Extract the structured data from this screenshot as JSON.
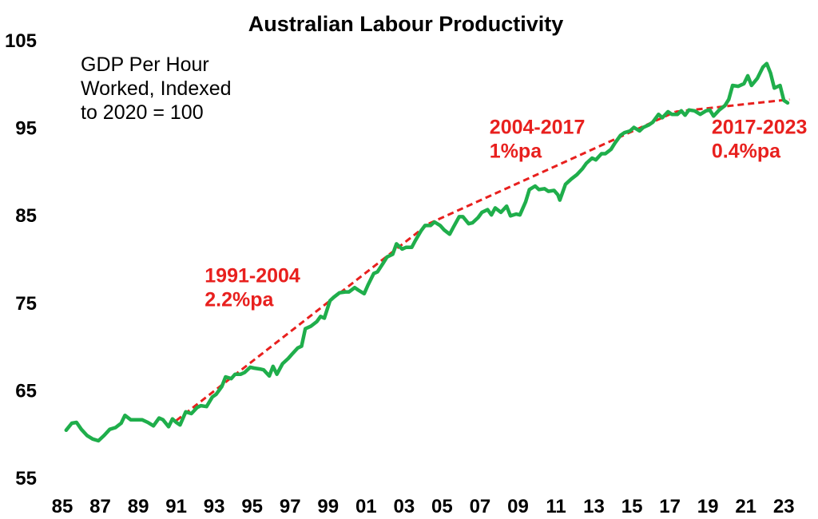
{
  "chart_data": {
    "type": "line",
    "title": "Australian Labour Productivity",
    "note": [
      "GDP Per Hour",
      "Worked, Indexed",
      "to 2020 = 100"
    ],
    "ylim": [
      55,
      105
    ],
    "yticks": [
      55,
      65,
      75,
      85,
      95,
      105
    ],
    "xlim": [
      1985,
      2024
    ],
    "xticks": [
      {
        "value": 1985,
        "label": "85"
      },
      {
        "value": 1987,
        "label": "87"
      },
      {
        "value": 1989,
        "label": "89"
      },
      {
        "value": 1991,
        "label": "91"
      },
      {
        "value": 1993,
        "label": "93"
      },
      {
        "value": 1995,
        "label": "95"
      },
      {
        "value": 1997,
        "label": "97"
      },
      {
        "value": 1999,
        "label": "99"
      },
      {
        "value": 2001,
        "label": "01"
      },
      {
        "value": 2003,
        "label": "03"
      },
      {
        "value": 2005,
        "label": "05"
      },
      {
        "value": 2007,
        "label": "07"
      },
      {
        "value": 2009,
        "label": "09"
      },
      {
        "value": 2011,
        "label": "11"
      },
      {
        "value": 2013,
        "label": "13"
      },
      {
        "value": 2015,
        "label": "15"
      },
      {
        "value": 2017,
        "label": "17"
      },
      {
        "value": 2019,
        "label": "19"
      },
      {
        "value": 2021,
        "label": "21"
      },
      {
        "value": 2023,
        "label": "23"
      }
    ],
    "colors": {
      "series": "#1fae4b",
      "trend": "#e8201e",
      "annotation": "#e8201e"
    },
    "series": [
      {
        "values": [
          [
            1985.2,
            60.4
          ],
          [
            1985.5,
            61.2
          ],
          [
            1985.75,
            61.3
          ],
          [
            1986.0,
            60.5
          ],
          [
            1986.3,
            59.8
          ],
          [
            1986.6,
            59.4
          ],
          [
            1986.9,
            59.2
          ],
          [
            1987.2,
            59.8
          ],
          [
            1987.5,
            60.5
          ],
          [
            1987.8,
            60.7
          ],
          [
            1988.1,
            61.2
          ],
          [
            1988.3,
            62.1
          ],
          [
            1988.6,
            61.6
          ],
          [
            1988.9,
            61.6
          ],
          [
            1989.2,
            61.6
          ],
          [
            1989.5,
            61.3
          ],
          [
            1989.8,
            60.9
          ],
          [
            1990.1,
            61.8
          ],
          [
            1990.3,
            61.6
          ],
          [
            1990.6,
            60.8
          ],
          [
            1990.8,
            61.7
          ],
          [
            1991.0,
            61.3
          ],
          [
            1991.2,
            61.0
          ],
          [
            1991.5,
            62.5
          ],
          [
            1991.8,
            62.3
          ],
          [
            1992.1,
            63.0
          ],
          [
            1992.3,
            63.2
          ],
          [
            1992.6,
            63.1
          ],
          [
            1992.9,
            64.2
          ],
          [
            1993.1,
            64.5
          ],
          [
            1993.4,
            65.4
          ],
          [
            1993.6,
            66.5
          ],
          [
            1993.9,
            66.3
          ],
          [
            1994.1,
            66.8
          ],
          [
            1994.4,
            66.8
          ],
          [
            1994.6,
            67.0
          ],
          [
            1994.9,
            67.6
          ],
          [
            1995.1,
            67.5
          ],
          [
            1995.4,
            67.4
          ],
          [
            1995.6,
            67.3
          ],
          [
            1995.9,
            66.6
          ],
          [
            1996.1,
            67.7
          ],
          [
            1996.3,
            66.8
          ],
          [
            1996.6,
            68.0
          ],
          [
            1996.9,
            68.6
          ],
          [
            1997.1,
            69.1
          ],
          [
            1997.4,
            69.8
          ],
          [
            1997.6,
            70.0
          ],
          [
            1997.8,
            72.0
          ],
          [
            1998.1,
            72.3
          ],
          [
            1998.4,
            72.8
          ],
          [
            1998.6,
            73.4
          ],
          [
            1998.8,
            73.2
          ],
          [
            1999.1,
            75.2
          ],
          [
            1999.3,
            75.6
          ],
          [
            1999.6,
            76.1
          ],
          [
            1999.9,
            76.2
          ],
          [
            2000.1,
            76.2
          ],
          [
            2000.4,
            76.7
          ],
          [
            2000.6,
            76.4
          ],
          [
            2000.9,
            76.0
          ],
          [
            2001.1,
            77.0
          ],
          [
            2001.4,
            78.3
          ],
          [
            2001.6,
            78.5
          ],
          [
            2001.9,
            79.5
          ],
          [
            2002.1,
            80.2
          ],
          [
            2002.4,
            80.5
          ],
          [
            2002.6,
            81.7
          ],
          [
            2002.9,
            81.1
          ],
          [
            2003.1,
            81.3
          ],
          [
            2003.4,
            81.3
          ],
          [
            2003.6,
            82.1
          ],
          [
            2003.9,
            83.2
          ],
          [
            2004.1,
            83.8
          ],
          [
            2004.4,
            83.8
          ],
          [
            2004.6,
            84.2
          ],
          [
            2004.9,
            83.8
          ],
          [
            2005.1,
            83.3
          ],
          [
            2005.4,
            82.8
          ],
          [
            2005.6,
            83.6
          ],
          [
            2005.9,
            84.8
          ],
          [
            2006.1,
            84.8
          ],
          [
            2006.4,
            84.0
          ],
          [
            2006.6,
            84.1
          ],
          [
            2006.9,
            84.7
          ],
          [
            2007.1,
            85.3
          ],
          [
            2007.4,
            85.6
          ],
          [
            2007.6,
            85.0
          ],
          [
            2007.8,
            85.8
          ],
          [
            2008.1,
            85.3
          ],
          [
            2008.4,
            86.0
          ],
          [
            2008.6,
            84.9
          ],
          [
            2008.9,
            85.1
          ],
          [
            2009.1,
            85.0
          ],
          [
            2009.4,
            86.5
          ],
          [
            2009.6,
            87.9
          ],
          [
            2009.9,
            88.3
          ],
          [
            2010.1,
            87.9
          ],
          [
            2010.4,
            88.0
          ],
          [
            2010.6,
            87.7
          ],
          [
            2010.9,
            87.8
          ],
          [
            2011.1,
            87.3
          ],
          [
            2011.2,
            86.7
          ],
          [
            2011.5,
            88.5
          ],
          [
            2011.8,
            89.1
          ],
          [
            2012.1,
            89.6
          ],
          [
            2012.4,
            90.3
          ],
          [
            2012.6,
            90.9
          ],
          [
            2012.9,
            91.5
          ],
          [
            2013.1,
            91.3
          ],
          [
            2013.4,
            92.0
          ],
          [
            2013.6,
            92.0
          ],
          [
            2013.9,
            92.5
          ],
          [
            2014.1,
            93.2
          ],
          [
            2014.4,
            94.1
          ],
          [
            2014.6,
            94.4
          ],
          [
            2014.9,
            94.6
          ],
          [
            2015.1,
            95.0
          ],
          [
            2015.4,
            94.6
          ],
          [
            2015.6,
            95.0
          ],
          [
            2015.9,
            95.3
          ],
          [
            2016.1,
            95.6
          ],
          [
            2016.4,
            96.5
          ],
          [
            2016.6,
            96.1
          ],
          [
            2016.9,
            96.8
          ],
          [
            2017.1,
            96.5
          ],
          [
            2017.4,
            96.5
          ],
          [
            2017.6,
            96.9
          ],
          [
            2017.8,
            96.4
          ],
          [
            2018.0,
            97.0
          ],
          [
            2018.3,
            96.9
          ],
          [
            2018.6,
            96.5
          ],
          [
            2018.9,
            96.9
          ],
          [
            2019.1,
            97.0
          ],
          [
            2019.3,
            96.3
          ],
          [
            2019.6,
            97.0
          ],
          [
            2019.9,
            97.5
          ],
          [
            2020.1,
            98.2
          ],
          [
            2020.3,
            99.8
          ],
          [
            2020.6,
            99.7
          ],
          [
            2020.9,
            100.0
          ],
          [
            2021.1,
            100.9
          ],
          [
            2021.3,
            99.8
          ],
          [
            2021.6,
            100.6
          ],
          [
            2021.9,
            101.9
          ],
          [
            2022.1,
            102.3
          ],
          [
            2022.3,
            101.2
          ],
          [
            2022.5,
            99.5
          ],
          [
            2022.8,
            99.8
          ],
          [
            2023.0,
            98.1
          ],
          [
            2023.2,
            97.8
          ]
        ]
      }
    ],
    "trend_lines": [
      {
        "label": "1991-2004",
        "rate": "2.2%pa",
        "from": [
          1991.0,
          61.5
        ],
        "to": [
          2004.3,
          84.0
        ]
      },
      {
        "label": "2004-2017",
        "rate": "1%pa",
        "from": [
          2004.3,
          84.0
        ],
        "to": [
          2017.3,
          96.8
        ]
      },
      {
        "label": "2017-2023",
        "rate": "0.4%pa",
        "from": [
          2017.3,
          96.8
        ],
        "to": [
          2023.3,
          98.2
        ]
      }
    ],
    "annotations": [
      {
        "lines": [
          "1991-2004",
          "2.2%pa"
        ],
        "at": [
          1992.5,
          77.3
        ]
      },
      {
        "lines": [
          "2004-2017",
          "1%pa"
        ],
        "at": [
          2007.5,
          94.3
        ]
      },
      {
        "lines": [
          "2017-2023",
          "0.4%pa"
        ],
        "at": [
          2019.2,
          94.3
        ]
      }
    ]
  }
}
